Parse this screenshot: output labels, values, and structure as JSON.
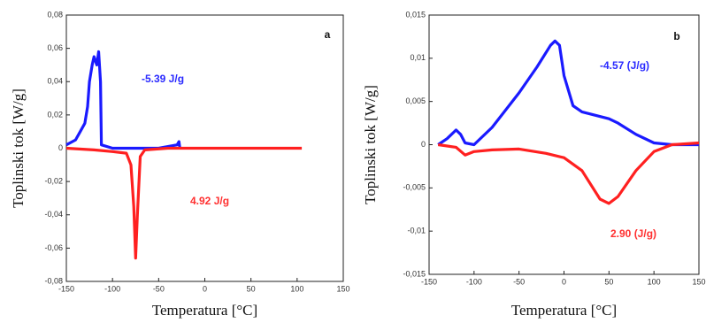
{
  "chart_data": [
    {
      "type": "line",
      "label": "a",
      "xlabel": "Temperatura [°C]",
      "ylabel": "Toplinski tok [W/g]",
      "xlim": [
        -150,
        150
      ],
      "xticks": [
        -150,
        -100,
        -50,
        0,
        50,
        100,
        150
      ],
      "ylim": [
        -0.08,
        0.08
      ],
      "yticks": [
        {
          "value": -0.08,
          "label": "-0,08"
        },
        {
          "value": -0.06,
          "label": "-0,06"
        },
        {
          "value": -0.04,
          "label": "-0,04"
        },
        {
          "value": -0.02,
          "label": "-0,02"
        },
        0,
        {
          "value": 0.02,
          "label": "0,02"
        },
        {
          "value": 0.04,
          "label": "0,04"
        },
        {
          "value": 0.06,
          "label": "0,06"
        },
        {
          "value": 0.08,
          "label": "0,08"
        }
      ],
      "annotations": [
        {
          "text": "-5.39 J/g",
          "color": "#2a2aff"
        },
        {
          "text": "4.92 J/g",
          "color": "#ff3030"
        }
      ],
      "series": [
        {
          "color": "#1a1aff",
          "x": [
            -150,
            -140,
            -135,
            -130,
            -127,
            -125,
            -122,
            -120,
            -117,
            -115,
            -113,
            -112,
            -100,
            -50,
            -30,
            -28,
            -27
          ],
          "values": [
            0.002,
            0.005,
            0.01,
            0.015,
            0.025,
            0.04,
            0.05,
            0.055,
            0.05,
            0.058,
            0.04,
            0.002,
            0,
            0,
            0.002,
            0.004,
            0
          ]
        },
        {
          "color": "#ff2020",
          "x": [
            -150,
            -120,
            -100,
            -85,
            -80,
            -77,
            -75,
            -73,
            -70,
            -65,
            -40,
            0,
            50,
            105
          ],
          "values": [
            0,
            -0.001,
            -0.002,
            -0.003,
            -0.01,
            -0.035,
            -0.066,
            -0.04,
            -0.005,
            -0.001,
            0,
            0,
            0,
            0
          ]
        }
      ]
    },
    {
      "type": "line",
      "label": "b",
      "xlabel": "Temperatura [°C]",
      "ylabel": "Toplinski tok [W/g]",
      "xlim": [
        -150,
        150
      ],
      "xticks": [
        -150,
        -100,
        -50,
        0,
        50,
        100,
        150
      ],
      "ylim": [
        -0.015,
        0.015
      ],
      "yticks": [
        {
          "value": -0.015,
          "label": "-0,015"
        },
        {
          "value": -0.01,
          "label": "-0,01"
        },
        {
          "value": -0.005,
          "label": "-0,005"
        },
        0,
        {
          "value": 0.005,
          "label": "0,005"
        },
        {
          "value": 0.01,
          "label": "0,01"
        },
        {
          "value": 0.015,
          "label": "0,015"
        }
      ],
      "annotations": [
        {
          "text": "-4.57 (J/g)",
          "color": "#2a2aff"
        },
        {
          "text": "2.90 (J/g)",
          "color": "#ff3030"
        }
      ],
      "series": [
        {
          "color": "#1a1aff",
          "x": [
            -140,
            -130,
            -120,
            -115,
            -110,
            -100,
            -80,
            -50,
            -30,
            -15,
            -10,
            -5,
            0,
            10,
            20,
            50,
            60,
            80,
            100,
            120,
            150
          ],
          "values": [
            0,
            0.0007,
            0.0017,
            0.0012,
            0.0002,
            0,
            0.002,
            0.006,
            0.009,
            0.0115,
            0.012,
            0.0115,
            0.008,
            0.0045,
            0.0038,
            0.003,
            0.0025,
            0.0012,
            0.0002,
            0,
            0
          ]
        },
        {
          "color": "#ff2020",
          "x": [
            -140,
            -120,
            -110,
            -100,
            -80,
            -50,
            -20,
            0,
            20,
            40,
            50,
            60,
            80,
            100,
            120,
            150
          ],
          "values": [
            0,
            -0.0003,
            -0.0012,
            -0.0008,
            -0.0006,
            -0.0005,
            -0.001,
            -0.0015,
            -0.003,
            -0.0063,
            -0.0068,
            -0.006,
            -0.003,
            -0.0008,
            0,
            0.0002
          ]
        }
      ]
    }
  ]
}
